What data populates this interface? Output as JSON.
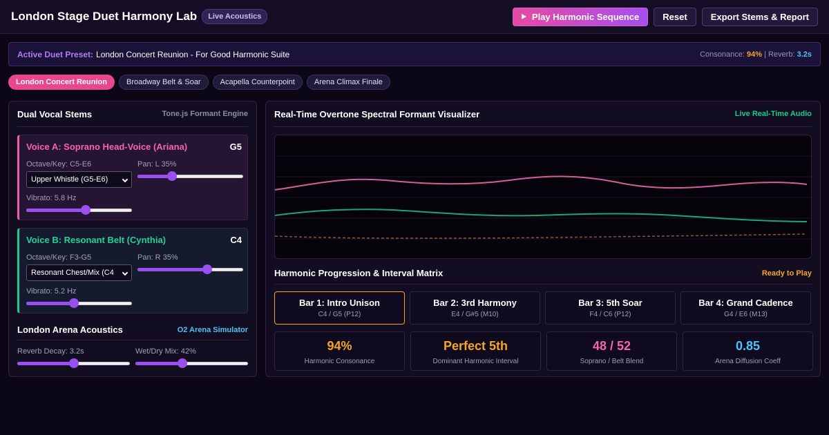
{
  "header": {
    "title": "London Stage Duet Harmony Lab",
    "badge": "Live Acoustics",
    "play_label": "Play Harmonic Sequence",
    "reset_label": "Reset",
    "export_label": "Export Stems & Report"
  },
  "preset": {
    "label": "Active Duet Preset:",
    "value": "London Concert Reunion - For Good Harmonic Suite",
    "consonance_label": "Consonance:",
    "consonance_value": "94%",
    "separator": "|",
    "reverb_label": "Reverb:",
    "reverb_value": "3.2s"
  },
  "chips": [
    {
      "label": "London Concert Reunion",
      "active": true
    },
    {
      "label": "Broadway Belt & Soar",
      "active": false
    },
    {
      "label": "Acapella Counterpoint",
      "active": false
    },
    {
      "label": "Arena Climax Finale",
      "active": false
    }
  ],
  "left_panel": {
    "title": "Dual Vocal Stems",
    "tag": "Tone.js Formant Engine",
    "voice_a": {
      "name": "Voice A: Soprano Head-Voice (Ariana)",
      "note": "G5",
      "octave_label": "Octave/Key: C5-E6",
      "select_value": "Upper Whistle (G5-E6)",
      "pan_label": "Pan: L 35%",
      "pan_value": 0.33,
      "vibrato_label": "Vibrato: 5.8 Hz",
      "vibrato_value": 0.56
    },
    "voice_b": {
      "name": "Voice B: Resonant Belt (Cynthia)",
      "note": "C4",
      "octave_label": "Octave/Key: F3-G5",
      "select_value": "Resonant Chest/Mix (C4",
      "pan_label": "Pan: R 35%",
      "pan_value": 0.66,
      "vibrato_label": "Vibrato: 5.2 Hz",
      "vibrato_value": 0.45
    },
    "acoustics": {
      "title": "London Arena Acoustics",
      "tag": "O2 Arena Simulator",
      "reverb_label": "Reverb Decay: 3.2s",
      "reverb_value": 0.5,
      "wetdry_label": "Wet/Dry Mix: 42%",
      "wetdry_value": 0.42
    }
  },
  "right_panel": {
    "title": "Real-Time Overtone Spectral Formant Visualizer",
    "tag": "Live Real-Time Audio",
    "viz_colors": {
      "voice_a": "#d45fa0",
      "voice_b": "#18a878",
      "baseline": "#8a5a3a"
    },
    "progression": {
      "title": "Harmonic Progression & Interval Matrix",
      "status": "Ready to Play",
      "bars": [
        {
          "title": "Bar 1: Intro Unison",
          "sub": "C4 / G5 (P12)",
          "active": true
        },
        {
          "title": "Bar 2: 3rd Harmony",
          "sub": "E4 / G#5 (M10)",
          "active": false
        },
        {
          "title": "Bar 3: 5th Soar",
          "sub": "F4 / C6 (P12)",
          "active": false
        },
        {
          "title": "Bar 4: Grand Cadence",
          "sub": "G4 / E6 (M13)",
          "active": false
        }
      ]
    },
    "metrics": [
      {
        "value": "94%",
        "label": "Harmonic Consonance"
      },
      {
        "value": "Perfect 5th",
        "label": "Dominant Harmonic Interval"
      },
      {
        "value": "48 / 52",
        "label": "Soprano / Belt Blend"
      },
      {
        "value": "0.85",
        "label": "Arena Diffusion Coeff"
      }
    ]
  }
}
